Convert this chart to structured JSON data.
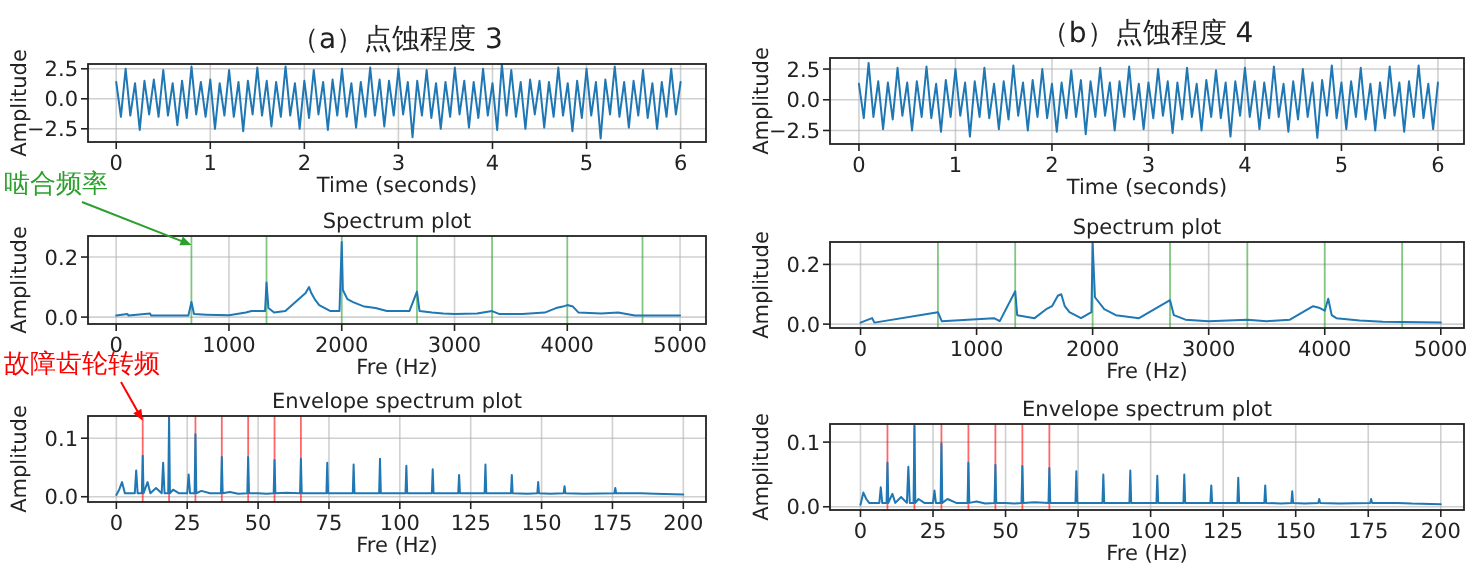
{
  "chart_data": [
    {
      "type": "line",
      "title": "（a）点蚀程度 3",
      "xlabel": "Time (seconds)",
      "ylabel": "Amplitude",
      "xlim": [
        -0.3,
        6.27
      ],
      "ylim": [
        -3.6,
        2.9
      ],
      "xticks": [
        0,
        1,
        2,
        3,
        4,
        5,
        6
      ],
      "yticks": [
        {
          "value": -2.5,
          "label": "−2.5"
        },
        {
          "value": 0,
          "label": "0.0"
        },
        {
          "value": 2.5,
          "label": "2.5"
        }
      ],
      "grid": true,
      "series": [
        {
          "color": "#1f77b4",
          "x": [
            0,
            0.05,
            0.1,
            0.15,
            0.2,
            0.25,
            0.3,
            0.35,
            0.4,
            0.45,
            0.5,
            0.55,
            0.6,
            0.65,
            0.7,
            0.75,
            0.8,
            0.85,
            0.9,
            0.95,
            1,
            1.05,
            1.1,
            1.15,
            1.2,
            1.25,
            1.3,
            1.35,
            1.4,
            1.45,
            1.5,
            1.55,
            1.6,
            1.65,
            1.7,
            1.75,
            1.8,
            1.85,
            1.9,
            1.95,
            2,
            2.05,
            2.1,
            2.15,
            2.2,
            2.25,
            2.3,
            2.35,
            2.4,
            2.45,
            2.5,
            2.55,
            2.6,
            2.65,
            2.7,
            2.75,
            2.8,
            2.85,
            2.9,
            2.95,
            3,
            3.05,
            3.1,
            3.15,
            3.2,
            3.25,
            3.3,
            3.35,
            3.4,
            3.45,
            3.5,
            3.55,
            3.6,
            3.65,
            3.7,
            3.75,
            3.8,
            3.85,
            3.9,
            3.95,
            4,
            4.05,
            4.1,
            4.15,
            4.2,
            4.25,
            4.3,
            4.35,
            4.4,
            4.45,
            4.5,
            4.55,
            4.6,
            4.65,
            4.7,
            4.75,
            4.8,
            4.85,
            4.9,
            4.95,
            5,
            5.05,
            5.1,
            5.15,
            5.2,
            5.25,
            5.3,
            5.35,
            5.4,
            5.45,
            5.5,
            5.55,
            5.6,
            5.65,
            5.7,
            5.75,
            5.8,
            5.85,
            5.9,
            5.95,
            6
          ],
          "values": [
            1.4,
            -1.5,
            2.5,
            -1.4,
            1.3,
            -2.6,
            1.5,
            -1.3,
            1.6,
            -1.5,
            2.4,
            -1.4,
            1.3,
            -2.2,
            1.5,
            -1.6,
            2.7,
            -1.3,
            1.4,
            -1.5,
            1.6,
            -2.5,
            1.3,
            -1.4,
            2.4,
            -1.5,
            1.4,
            -2.7,
            1.5,
            -1.3,
            2.6,
            -1.4,
            1.5,
            -2.3,
            1.4,
            -1.5,
            2.7,
            -1.4,
            1.3,
            -2.5,
            1.5,
            -1.6,
            2.4,
            -1.3,
            1.4,
            -2.6,
            1.6,
            -1.4,
            2.5,
            -1.5,
            1.3,
            -2.4,
            1.4,
            -1.5,
            2.6,
            -1.4,
            1.6,
            -2.3,
            1.5,
            -1.4,
            2.5,
            -1.3,
            1.4,
            -3.2,
            1.5,
            -1.4,
            2.4,
            -1.6,
            1.3,
            -2.5,
            1.4,
            -1.5,
            2.6,
            -1.3,
            1.5,
            -2.4,
            1.4,
            -1.6,
            2.5,
            -1.4,
            1.3,
            -2.6,
            2.9,
            -1.4,
            2.4,
            -1.5,
            1.4,
            -2.5,
            1.6,
            -1.3,
            1.5,
            -2.4,
            1.4,
            -1.5,
            2.6,
            -1.4,
            1.3,
            -2.7,
            1.5,
            -1.6,
            2.5,
            -1.4,
            1.4,
            -3.3,
            1.6,
            -1.3,
            2.7,
            -1.5,
            1.4,
            -2.4,
            1.5,
            -1.4,
            2.4,
            -1.6,
            1.3,
            -2.5,
            1.4,
            -1.5,
            2.5,
            -1.3,
            1.4
          ]
        }
      ]
    },
    {
      "type": "line",
      "title": "Spectrum plot",
      "xlabel": "Fre (Hz)",
      "ylabel": "Amplitude",
      "xlim": [
        -250,
        5230
      ],
      "ylim": [
        -0.023,
        0.27
      ],
      "xticks": [
        0,
        1000,
        2000,
        3000,
        4000,
        5000
      ],
      "yticks": [
        {
          "value": 0,
          "label": "0.0"
        },
        {
          "value": 0.2,
          "label": "0.2"
        }
      ],
      "grid": true,
      "ref_lines": [
        {
          "axis": "x",
          "value": 667,
          "color": "#2ca02c"
        },
        {
          "axis": "x",
          "value": 1333,
          "color": "#2ca02c"
        },
        {
          "axis": "x",
          "value": 2000,
          "color": "#2ca02c"
        },
        {
          "axis": "x",
          "value": 2667,
          "color": "#2ca02c"
        },
        {
          "axis": "x",
          "value": 3333,
          "color": "#2ca02c"
        },
        {
          "axis": "x",
          "value": 4000,
          "color": "#2ca02c"
        },
        {
          "axis": "x",
          "value": 4667,
          "color": "#2ca02c"
        }
      ],
      "annotations": [
        {
          "text": "啮合频率",
          "x": 667,
          "y": 0.24
        }
      ],
      "series": [
        {
          "color": "#1f77b4",
          "x": [
            0,
            100,
            110,
            300,
            310,
            640,
            667,
            690,
            800,
            1000,
            1150,
            1200,
            1320,
            1333,
            1350,
            1400,
            1500,
            1560,
            1620,
            1680,
            1710,
            1730,
            1760,
            1800,
            1850,
            1900,
            1980,
            2000,
            2010,
            2050,
            2100,
            2200,
            2300,
            2400,
            2600,
            2667,
            2690,
            2800,
            2900,
            3000,
            3200,
            3333,
            3400,
            3600,
            3800,
            3900,
            3960,
            4000,
            4050,
            4100,
            4300,
            4450,
            4600,
            5000
          ],
          "values": [
            0.005,
            0.01,
            0.005,
            0.012,
            0.005,
            0.005,
            0.05,
            0.01,
            0.008,
            0.006,
            0.015,
            0.02,
            0.02,
            0.115,
            0.03,
            0.015,
            0.02,
            0.04,
            0.06,
            0.08,
            0.1,
            0.08,
            0.06,
            0.04,
            0.03,
            0.02,
            0.02,
            0.25,
            0.09,
            0.06,
            0.05,
            0.035,
            0.03,
            0.02,
            0.02,
            0.085,
            0.02,
            0.015,
            0.012,
            0.01,
            0.012,
            0.02,
            0.01,
            0.01,
            0.015,
            0.03,
            0.035,
            0.04,
            0.035,
            0.015,
            0.012,
            0.015,
            0.005,
            0.005
          ]
        }
      ]
    },
    {
      "type": "line",
      "title": "Envelope spectrum plot",
      "xlabel": "Fre (Hz)",
      "ylabel": "Amplitude",
      "xlim": [
        -10,
        208
      ],
      "ylim": [
        -0.009,
        0.138
      ],
      "xticks": [
        0,
        25,
        50,
        75,
        100,
        125,
        150,
        175,
        200
      ],
      "yticks": [
        {
          "value": 0,
          "label": "0.0"
        },
        {
          "value": 0.1,
          "label": "0.1"
        }
      ],
      "grid": true,
      "ref_lines": [
        {
          "axis": "x",
          "value": 9.3,
          "color": "#ff0000"
        },
        {
          "axis": "x",
          "value": 18.6,
          "color": "#ff0000"
        },
        {
          "axis": "x",
          "value": 27.9,
          "color": "#ff0000"
        },
        {
          "axis": "x",
          "value": 37.2,
          "color": "#ff0000"
        },
        {
          "axis": "x",
          "value": 46.5,
          "color": "#ff0000"
        },
        {
          "axis": "x",
          "value": 55.8,
          "color": "#ff0000"
        },
        {
          "axis": "x",
          "value": 65.1,
          "color": "#ff0000"
        }
      ],
      "annotations": [
        {
          "text": "故障齿轮转频",
          "x": 9.3,
          "y": 0.13
        }
      ],
      "series": [
        {
          "color": "#1f77b4",
          "x": [
            0,
            1,
            2,
            3,
            6.5,
            7,
            7.5,
            9,
            9.3,
            9.6,
            11,
            12,
            14,
            16,
            16.5,
            17,
            18.3,
            18.6,
            18.9,
            20,
            22,
            25,
            25.5,
            26,
            27.6,
            27.9,
            28.2,
            30,
            33,
            36.9,
            37.2,
            37.5,
            40,
            43,
            46.2,
            46.5,
            46.8,
            50,
            53,
            55.5,
            55.8,
            56.1,
            60,
            64.8,
            65.1,
            65.4,
            70,
            74.1,
            74.4,
            74.7,
            80,
            83.4,
            83.7,
            84,
            88,
            92.7,
            93,
            93.3,
            98,
            102,
            102.3,
            102.6,
            108,
            111.3,
            111.6,
            111.9,
            116,
            120.6,
            120.9,
            121.2,
            126,
            129.9,
            130.2,
            130.5,
            135,
            139.2,
            139.5,
            139.8,
            145,
            148.5,
            148.8,
            149.1,
            153,
            157.8,
            158.1,
            158.4,
            165,
            175.7,
            176,
            176.3,
            185,
            190,
            200
          ],
          "values": [
            0.003,
            0.012,
            0.025,
            0.006,
            0.006,
            0.045,
            0.006,
            0.006,
            0.07,
            0.006,
            0.025,
            0.006,
            0.015,
            0.006,
            0.058,
            0.006,
            0.006,
            0.135,
            0.006,
            0.012,
            0.006,
            0.006,
            0.038,
            0.006,
            0.006,
            0.107,
            0.006,
            0.01,
            0.006,
            0.006,
            0.068,
            0.006,
            0.008,
            0.005,
            0.006,
            0.068,
            0.006,
            0.006,
            0.005,
            0.006,
            0.063,
            0.006,
            0.007,
            0.006,
            0.065,
            0.006,
            0.006,
            0.006,
            0.058,
            0.006,
            0.006,
            0.006,
            0.055,
            0.006,
            0.006,
            0.006,
            0.065,
            0.006,
            0.006,
            0.006,
            0.053,
            0.006,
            0.006,
            0.006,
            0.047,
            0.006,
            0.006,
            0.006,
            0.037,
            0.006,
            0.006,
            0.006,
            0.055,
            0.006,
            0.006,
            0.006,
            0.037,
            0.006,
            0.005,
            0.006,
            0.025,
            0.006,
            0.005,
            0.006,
            0.018,
            0.006,
            0.005,
            0.006,
            0.015,
            0.006,
            0.006,
            0.005,
            0.004
          ]
        }
      ]
    },
    {
      "type": "line",
      "title": "（b）点蚀程度 4",
      "xlabel": "Time (seconds)",
      "ylabel": "Amplitude",
      "xlim": [
        -0.3,
        6.27
      ],
      "ylim": [
        -3.6,
        3.4
      ],
      "xticks": [
        0,
        1,
        2,
        3,
        4,
        5,
        6
      ],
      "yticks": [
        {
          "value": -2.5,
          "label": "−2.5"
        },
        {
          "value": 0,
          "label": "0.0"
        },
        {
          "value": 2.5,
          "label": "2.5"
        }
      ],
      "grid": true,
      "series": [
        {
          "color": "#1f77b4",
          "x": [
            0,
            0.05,
            0.1,
            0.15,
            0.2,
            0.25,
            0.3,
            0.35,
            0.4,
            0.45,
            0.5,
            0.55,
            0.6,
            0.65,
            0.7,
            0.75,
            0.8,
            0.85,
            0.9,
            0.95,
            1,
            1.05,
            1.1,
            1.15,
            1.2,
            1.25,
            1.3,
            1.35,
            1.4,
            1.45,
            1.5,
            1.55,
            1.6,
            1.65,
            1.7,
            1.75,
            1.8,
            1.85,
            1.9,
            1.95,
            2,
            2.05,
            2.1,
            2.15,
            2.2,
            2.25,
            2.3,
            2.35,
            2.4,
            2.45,
            2.5,
            2.55,
            2.6,
            2.65,
            2.7,
            2.75,
            2.8,
            2.85,
            2.9,
            2.95,
            3,
            3.05,
            3.1,
            3.15,
            3.2,
            3.25,
            3.3,
            3.35,
            3.4,
            3.45,
            3.5,
            3.55,
            3.6,
            3.65,
            3.7,
            3.75,
            3.8,
            3.85,
            3.9,
            3.95,
            4,
            4.05,
            4.1,
            4.15,
            4.2,
            4.25,
            4.3,
            4.35,
            4.4,
            4.45,
            4.5,
            4.55,
            4.6,
            4.65,
            4.7,
            4.75,
            4.8,
            4.85,
            4.9,
            4.95,
            5,
            5.05,
            5.1,
            5.15,
            5.2,
            5.25,
            5.3,
            5.35,
            5.4,
            5.45,
            5.5,
            5.55,
            5.6,
            5.65,
            5.7,
            5.75,
            5.8,
            5.85,
            5.9,
            5.95,
            6
          ],
          "values": [
            1.3,
            -1.5,
            3.0,
            -1.4,
            1.5,
            -2.4,
            1.4,
            -1.6,
            2.6,
            -1.3,
            1.4,
            -2.5,
            1.5,
            -1.4,
            2.7,
            -1.5,
            1.3,
            -2.6,
            1.6,
            -1.4,
            2.5,
            -1.3,
            1.4,
            -3.0,
            1.5,
            -1.4,
            2.6,
            -1.5,
            1.3,
            -2.4,
            1.5,
            -1.6,
            2.8,
            -1.3,
            1.4,
            -2.5,
            1.6,
            -1.4,
            2.5,
            -1.5,
            1.3,
            -2.6,
            1.4,
            -1.5,
            2.4,
            -1.4,
            1.6,
            -2.8,
            1.5,
            -1.4,
            2.6,
            -1.3,
            1.4,
            -2.5,
            1.5,
            -1.4,
            2.7,
            -1.6,
            1.3,
            -2.4,
            1.4,
            -1.5,
            2.5,
            -1.3,
            1.5,
            -2.7,
            1.4,
            -1.6,
            2.6,
            -1.4,
            1.3,
            -2.5,
            1.6,
            -1.4,
            2.4,
            -1.5,
            1.4,
            -3.0,
            1.5,
            -1.3,
            2.6,
            -1.4,
            1.5,
            -2.4,
            1.4,
            -1.5,
            2.7,
            -1.4,
            1.3,
            -2.6,
            1.5,
            -1.6,
            2.5,
            -1.4,
            1.4,
            -3.1,
            1.6,
            -1.3,
            2.8,
            -1.5,
            1.4,
            -2.4,
            1.5,
            -1.4,
            2.6,
            -1.6,
            1.3,
            -2.5,
            1.4,
            -1.5,
            2.7,
            -1.3,
            1.4,
            -2.6,
            1.5,
            -1.4,
            2.8,
            -1.5,
            1.3,
            -2.4,
            1.4
          ]
        }
      ]
    },
    {
      "type": "line",
      "title": "Spectrum plot",
      "xlabel": "Fre (Hz)",
      "ylabel": "Amplitude",
      "xlim": [
        -263,
        5200
      ],
      "ylim": [
        -0.013,
        0.275
      ],
      "xticks": [
        0,
        1000,
        2000,
        3000,
        4000,
        5000
      ],
      "yticks": [
        {
          "value": 0,
          "label": "0.0"
        },
        {
          "value": 0.2,
          "label": "0.2"
        }
      ],
      "grid": true,
      "ref_lines": [
        {
          "axis": "x",
          "value": 667,
          "color": "#2ca02c"
        },
        {
          "axis": "x",
          "value": 1333,
          "color": "#2ca02c"
        },
        {
          "axis": "x",
          "value": 2000,
          "color": "#2ca02c"
        },
        {
          "axis": "x",
          "value": 2667,
          "color": "#2ca02c"
        },
        {
          "axis": "x",
          "value": 3333,
          "color": "#2ca02c"
        },
        {
          "axis": "x",
          "value": 4000,
          "color": "#2ca02c"
        },
        {
          "axis": "x",
          "value": 4667,
          "color": "#2ca02c"
        }
      ],
      "series": [
        {
          "color": "#1f77b4",
          "x": [
            0,
            100,
            120,
            667,
            700,
            1150,
            1200,
            1333,
            1350,
            1500,
            1600,
            1650,
            1700,
            1730,
            1760,
            1800,
            1900,
            1990,
            2000,
            2020,
            2100,
            2200,
            2400,
            2667,
            2700,
            2800,
            3000,
            3333,
            3500,
            3700,
            3900,
            3950,
            4000,
            4030,
            4060,
            4100,
            4300,
            4500,
            5000
          ],
          "values": [
            0.005,
            0.02,
            0.005,
            0.04,
            0.01,
            0.02,
            0.01,
            0.11,
            0.03,
            0.02,
            0.05,
            0.06,
            0.095,
            0.1,
            0.06,
            0.04,
            0.02,
            0.04,
            0.27,
            0.09,
            0.05,
            0.03,
            0.02,
            0.08,
            0.03,
            0.015,
            0.01,
            0.015,
            0.01,
            0.015,
            0.06,
            0.055,
            0.045,
            0.085,
            0.03,
            0.02,
            0.012,
            0.008,
            0.005
          ]
        }
      ]
    },
    {
      "type": "line",
      "title": "Envelope spectrum plot",
      "xlabel": "Fre (Hz)",
      "ylabel": "Amplitude",
      "xlim": [
        -10.5,
        208
      ],
      "ylim": [
        -0.005,
        0.128
      ],
      "xticks": [
        0,
        25,
        50,
        75,
        100,
        125,
        150,
        175,
        200
      ],
      "yticks": [
        {
          "value": 0,
          "label": "0.0"
        },
        {
          "value": 0.1,
          "label": "0.1"
        }
      ],
      "grid": true,
      "ref_lines": [
        {
          "axis": "x",
          "value": 9.3,
          "color": "#ff0000"
        },
        {
          "axis": "x",
          "value": 18.6,
          "color": "#ff0000"
        },
        {
          "axis": "x",
          "value": 27.9,
          "color": "#ff0000"
        },
        {
          "axis": "x",
          "value": 37.2,
          "color": "#ff0000"
        },
        {
          "axis": "x",
          "value": 46.5,
          "color": "#ff0000"
        },
        {
          "axis": "x",
          "value": 55.8,
          "color": "#ff0000"
        },
        {
          "axis": "x",
          "value": 65.1,
          "color": "#ff0000"
        }
      ],
      "series": [
        {
          "color": "#1f77b4",
          "x": [
            0,
            1,
            2,
            3,
            6.5,
            7,
            7.5,
            9,
            9.3,
            9.6,
            11,
            12,
            14,
            16,
            16.5,
            17,
            18.3,
            18.6,
            18.9,
            20,
            22,
            25,
            25.5,
            26,
            27.6,
            27.9,
            28.2,
            30,
            33,
            36.9,
            37.2,
            37.5,
            40,
            43,
            46.2,
            46.5,
            46.8,
            50,
            53,
            55.5,
            55.8,
            56.1,
            60,
            64.8,
            65.1,
            65.4,
            70,
            74.1,
            74.4,
            74.7,
            80,
            83.4,
            83.7,
            84,
            88,
            92.7,
            93,
            93.3,
            98,
            102,
            102.3,
            102.6,
            108,
            111.3,
            111.6,
            111.9,
            116,
            120.6,
            120.9,
            121.2,
            126,
            129.9,
            130.2,
            130.5,
            135,
            139.2,
            139.5,
            139.8,
            145,
            148.5,
            148.8,
            149.1,
            153,
            157.8,
            158.1,
            158.4,
            165,
            175.7,
            176,
            176.3,
            185,
            190,
            200
          ],
          "values": [
            0.003,
            0.022,
            0.012,
            0.006,
            0.006,
            0.03,
            0.006,
            0.006,
            0.068,
            0.006,
            0.02,
            0.006,
            0.015,
            0.006,
            0.062,
            0.006,
            0.006,
            0.125,
            0.006,
            0.012,
            0.006,
            0.006,
            0.025,
            0.006,
            0.006,
            0.098,
            0.006,
            0.012,
            0.006,
            0.006,
            0.068,
            0.006,
            0.008,
            0.005,
            0.006,
            0.065,
            0.006,
            0.006,
            0.005,
            0.006,
            0.063,
            0.006,
            0.007,
            0.006,
            0.06,
            0.006,
            0.006,
            0.006,
            0.055,
            0.006,
            0.006,
            0.006,
            0.05,
            0.006,
            0.006,
            0.006,
            0.056,
            0.006,
            0.006,
            0.006,
            0.048,
            0.006,
            0.006,
            0.006,
            0.05,
            0.006,
            0.006,
            0.006,
            0.033,
            0.006,
            0.006,
            0.006,
            0.045,
            0.006,
            0.006,
            0.006,
            0.033,
            0.006,
            0.005,
            0.006,
            0.024,
            0.006,
            0.005,
            0.006,
            0.012,
            0.006,
            0.005,
            0.006,
            0.012,
            0.006,
            0.006,
            0.005,
            0.004
          ]
        }
      ]
    }
  ]
}
